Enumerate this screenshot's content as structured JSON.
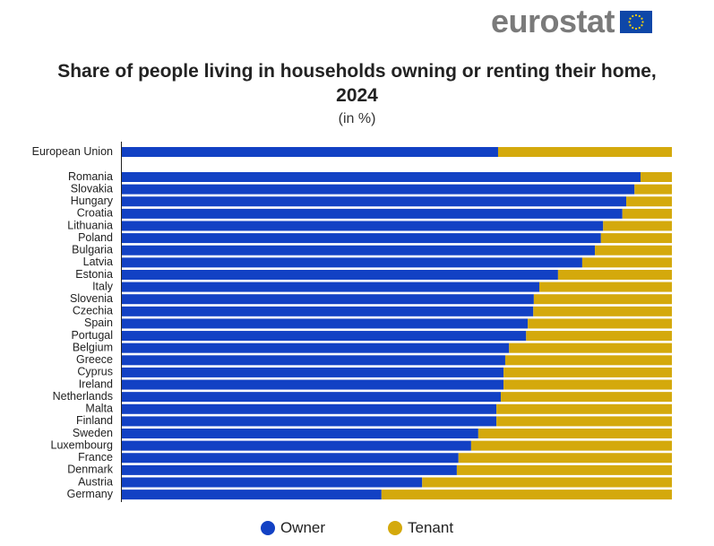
{
  "logo": {
    "text": "eurostat"
  },
  "chart_data": {
    "type": "bar",
    "orientation": "horizontal",
    "stacked": true,
    "title": "Share of people living in households owning or renting their home, 2024",
    "subtitle": "(in %)",
    "xlabel": "",
    "ylabel": "",
    "xlim": [
      0,
      100
    ],
    "grid": false,
    "legend_position": "bottom",
    "categories": [
      "European Union",
      "Romania",
      "Slovakia",
      "Hungary",
      "Croatia",
      "Lithuania",
      "Poland",
      "Bulgaria",
      "Latvia",
      "Estonia",
      "Italy",
      "Slovenia",
      "Czechia",
      "Spain",
      "Portugal",
      "Belgium",
      "Greece",
      "Cyprus",
      "Ireland",
      "Netherlands",
      "Malta",
      "Finland",
      "Sweden",
      "Luxembourg",
      "France",
      "Denmark",
      "Austria",
      "Germany"
    ],
    "series": [
      {
        "name": "Owner",
        "color": "#1241c4",
        "values": [
          68.4,
          94.3,
          93.2,
          91.7,
          91.0,
          87.5,
          87.1,
          86.0,
          83.7,
          79.3,
          75.9,
          74.9,
          74.8,
          73.8,
          73.5,
          70.4,
          69.7,
          69.4,
          69.4,
          68.9,
          68.1,
          68.1,
          64.8,
          63.5,
          61.2,
          60.9,
          54.6,
          47.2
        ]
      },
      {
        "name": "Tenant",
        "color": "#d4a90c",
        "values": [
          31.6,
          5.7,
          6.8,
          8.3,
          9.0,
          12.5,
          12.9,
          14.0,
          16.3,
          20.7,
          24.1,
          25.1,
          25.2,
          26.2,
          26.5,
          29.6,
          30.3,
          30.6,
          30.6,
          31.1,
          31.9,
          31.9,
          35.2,
          36.5,
          38.8,
          39.1,
          45.4,
          52.8
        ]
      }
    ]
  }
}
